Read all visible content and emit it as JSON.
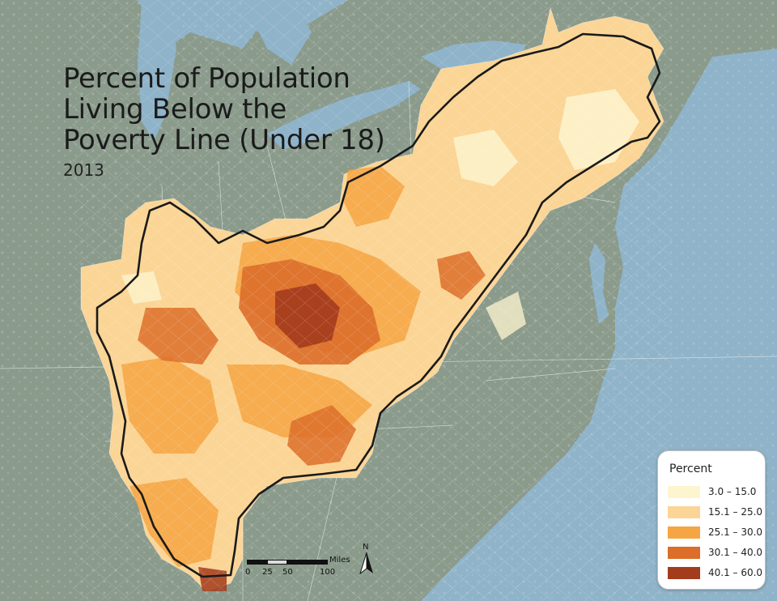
{
  "map": {
    "title_lines": [
      "Percent of Population",
      "Living Below the",
      "Poverty Line (Under 18)"
    ],
    "year": "2013"
  },
  "legend": {
    "title": "Percent",
    "classes": [
      {
        "label": "3.0 – 15.0",
        "color": "#fdf5cf"
      },
      {
        "label": "15.1 – 25.0",
        "color": "#fbd596"
      },
      {
        "label": "25.1 – 30.0",
        "color": "#f5a543"
      },
      {
        "label": "30.1 – 40.0",
        "color": "#dc6e2a"
      },
      {
        "label": "40.1 – 60.0",
        "color": "#a33b1d"
      }
    ]
  },
  "scale_bar": {
    "unit": "Miles",
    "ticks": [
      "0",
      "25",
      "50",
      "100"
    ]
  },
  "north_arrow": {
    "label": "N"
  },
  "colors": {
    "water": "#8fb3c9",
    "land": "#8a9a8b",
    "urban": "#c9d2d6",
    "boundary": "#1a1a1a"
  }
}
